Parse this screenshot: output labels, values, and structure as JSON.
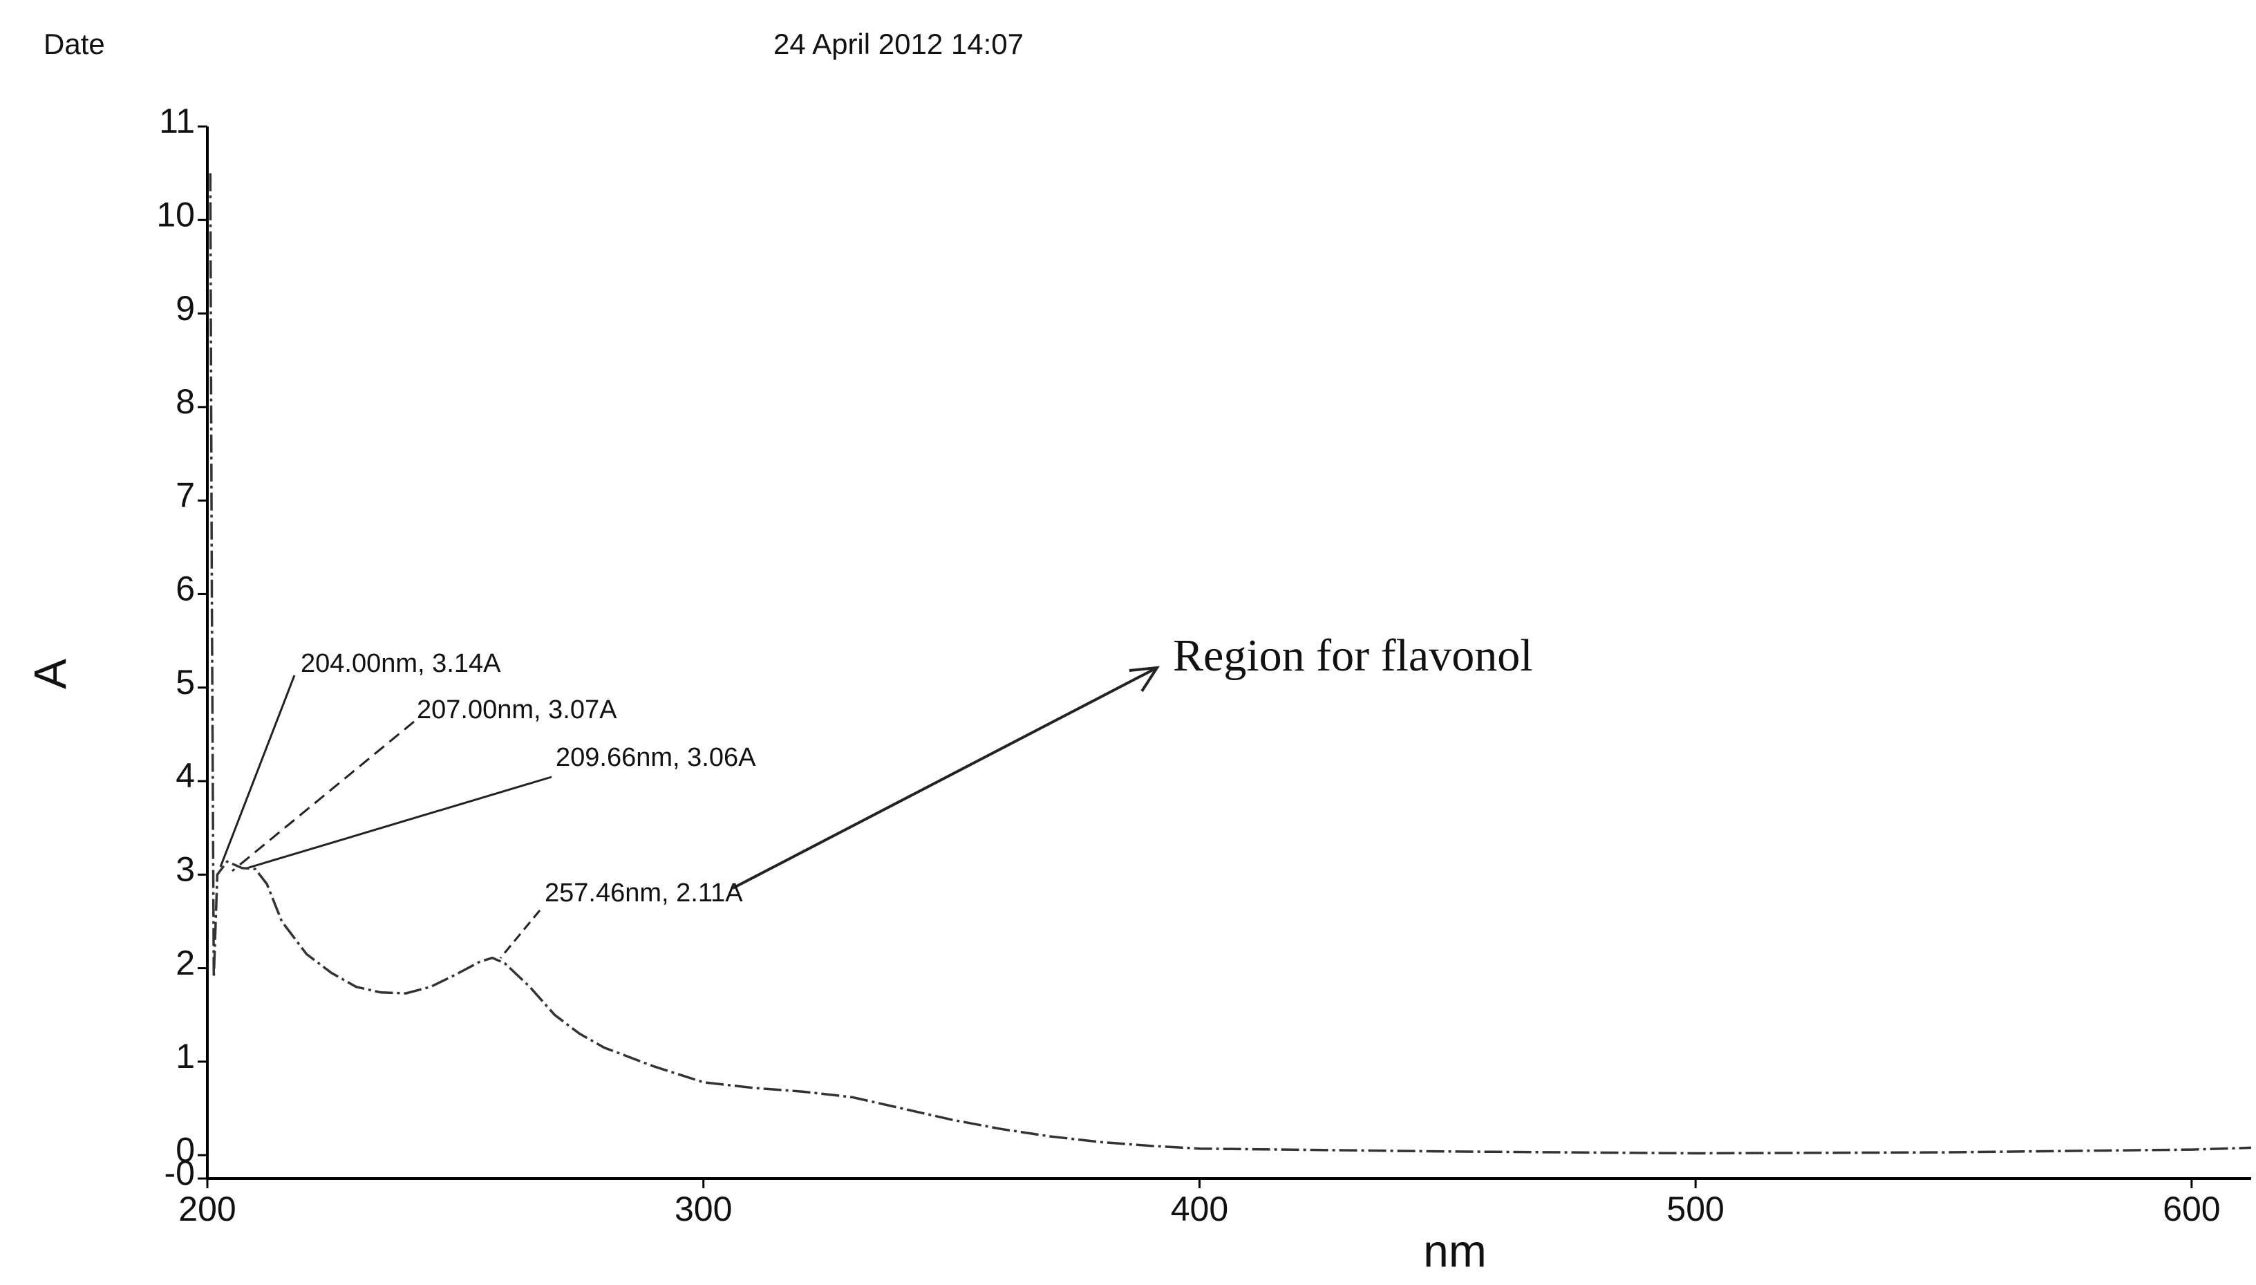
{
  "chart_data": {
    "type": "line",
    "header_label": "Date",
    "date": "24 April 2012 14:07",
    "xlabel": "nm",
    "ylabel": "A",
    "x": [
      200.6,
      200.9,
      201.3,
      202,
      204,
      207,
      209.66,
      212,
      215,
      220,
      225,
      230,
      235,
      240,
      245,
      250,
      255,
      257.46,
      260,
      265,
      270,
      275,
      280,
      290,
      300,
      310,
      320,
      330,
      340,
      350,
      360,
      370,
      380,
      390,
      400,
      450,
      500,
      550,
      600,
      612
    ],
    "values": [
      10.5,
      6.0,
      1.9,
      3.0,
      3.14,
      3.07,
      3.06,
      2.9,
      2.5,
      2.15,
      1.95,
      1.8,
      1.74,
      1.73,
      1.8,
      1.93,
      2.07,
      2.11,
      2.05,
      1.8,
      1.5,
      1.3,
      1.15,
      0.95,
      0.78,
      0.72,
      0.68,
      0.62,
      0.5,
      0.38,
      0.28,
      0.2,
      0.14,
      0.1,
      0.07,
      0.04,
      0.02,
      0.03,
      0.06,
      0.08
    ],
    "color": "#333333",
    "xlim": [
      200,
      612
    ],
    "ylim": [
      -0.25,
      11
    ],
    "xticks": [
      200,
      300,
      400,
      500,
      600
    ],
    "yticks": [
      {
        "value": -0.25,
        "label": "-0"
      },
      0,
      1,
      2,
      3,
      4,
      5,
      6,
      7,
      8,
      9,
      10,
      11
    ],
    "annotations": [
      {
        "text": "204.00nm, 3.14A"
      },
      {
        "text": "207.00nm, 3.07A"
      },
      {
        "text": "209.66nm, 3.06A"
      },
      {
        "text": "257.46nm, 2.11A"
      },
      {
        "text": "Region for flavonol"
      }
    ]
  }
}
